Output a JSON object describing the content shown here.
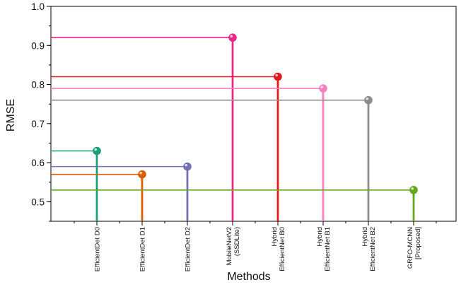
{
  "chart_data": {
    "type": "lollipop",
    "title": "",
    "xlabel": "Methods",
    "ylabel": "RMSE",
    "ylim": [
      0.45,
      1.0
    ],
    "yticks": [
      0.5,
      0.6,
      0.7,
      0.8,
      0.9,
      1.0
    ],
    "ytick_labels": [
      "0.5",
      "0.6",
      "0.7",
      "0.8",
      "0.9",
      "1.0"
    ],
    "grid": false,
    "legend": "none",
    "categories": [
      {
        "lines": [
          "EfficientDet D0"
        ]
      },
      {
        "lines": [
          "EfficientDet D1"
        ]
      },
      {
        "lines": [
          "EfficientDet D2"
        ]
      },
      {
        "lines": [
          "MobileNetV2",
          "(SSDLite)"
        ]
      },
      {
        "lines": [
          "Hybrid",
          "EfficientNet B0"
        ]
      },
      {
        "lines": [
          "Hybrid",
          "EfficientNet B1"
        ]
      },
      {
        "lines": [
          "Hybrid",
          "EfficientNet B2"
        ]
      },
      {
        "lines": [
          "GRFO-MCNN",
          "[Proposed]"
        ]
      }
    ],
    "values": [
      0.63,
      0.57,
      0.59,
      0.92,
      0.82,
      0.79,
      0.76,
      0.53
    ],
    "colors": [
      "#1b9e77",
      "#d95f02",
      "#7570b3",
      "#e7298a",
      "#e31a1c",
      "#f781bf",
      "#8c8c8c",
      "#66a61e"
    ]
  }
}
